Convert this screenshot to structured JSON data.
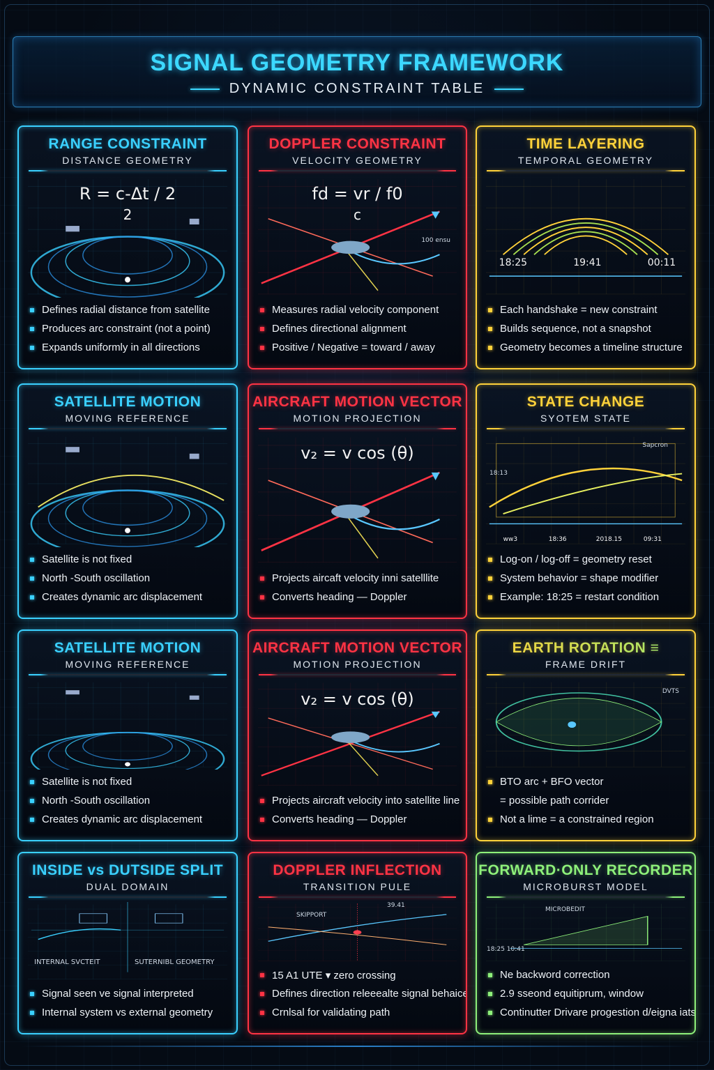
{
  "header": {
    "title": "SIGNAL GEOMETRY FRAMEWORK",
    "subtitle": "DYNAMIC CONSTRAINT TABLE"
  },
  "colors": {
    "blue": "#3ad0ff",
    "red": "#ff3344",
    "yellow": "#ffd23a",
    "green": "#8ef07a"
  },
  "cards": [
    {
      "title": "RANGE CONSTRAINT",
      "subtitle": "DISTANCE GEOMETRY",
      "color": "#3ad0ff",
      "icon": "orbit-arc-icon",
      "formula": "R = c-Δt / 2",
      "formula_denominator": "2",
      "bullets": [
        "Defines radial distance from satellite",
        "Produces arc constraint (not a point)",
        "Expands uniformly in all directions"
      ]
    },
    {
      "title": "DOPPLER CONSTRAINT",
      "subtitle": "VELOCITY GEOMETRY",
      "color": "#ff3344",
      "icon": "aircraft-vector-icon",
      "formula": "fd = vr / f0",
      "formula_denominator": "c",
      "labels": [
        "100 ensu"
      ],
      "bullets": [
        "Measures radial velocity component",
        "Defines directional alignment",
        "Positive / Negative = toward / away"
      ]
    },
    {
      "title": "TIME LAYERING",
      "subtitle": "TEMPORAL GEOMETRY",
      "color": "#ffd23a",
      "icon": "timeline-arcs-icon",
      "times": [
        "18:25",
        "19:41",
        "00:11"
      ],
      "bullets": [
        "Each handshake = new constraint",
        "Builds sequence, not a snapshot",
        "Geometry becomes a timeline structure"
      ]
    },
    {
      "title": "SATELLITE MOTION",
      "subtitle": "MOVING REFERENCE",
      "color": "#3ad0ff",
      "icon": "satellite-orbit-icon",
      "bullets": [
        "Satellite is not fixed",
        "North -South oscillation",
        "Creates dynamic arc displacement"
      ]
    },
    {
      "title": "AIRCRAFT MOTION VECTOR",
      "subtitle": "MOTION PROJECTION",
      "color": "#ff3344",
      "icon": "aircraft-vector-icon",
      "formula": "v₂ = v cos (θ)",
      "bullets": [
        "Projects aircaft velocity inni satelllite",
        "Converts heading — Doppler"
      ]
    },
    {
      "title": "STATE CHANGE",
      "subtitle": "SYOTEM STATE",
      "color": "#ffd23a",
      "icon": "state-arc-icon",
      "labels": [
        "Sарcron",
        "18:13"
      ],
      "times": [
        "ww3",
        "18:36",
        "2018.15",
        "09:31"
      ],
      "bullets": [
        "Log-on / log-off = geometry reset",
        "System behavior = shape modifier",
        "Example: 18:25 = restart condition"
      ]
    },
    {
      "title": "SATELLITE MOTION",
      "subtitle": "MOVING REFERENCE",
      "color": "#3ad0ff",
      "icon": "earth-satellite-icon",
      "bullets": [
        "Satellite is not fixed",
        "North -South oscillation",
        "Creates dynamic arc displacement"
      ]
    },
    {
      "title": "AIRCRAFT MOTION VECTOR",
      "subtitle": "MOTION PROJECTION",
      "color": "#ff3344",
      "icon": "aircraft-vector-icon",
      "formula": "v₂ = v cos (θ)",
      "bullets": [
        "Projects aircraft velocity into satellite line",
        "Converts heading — Doppler"
      ]
    },
    {
      "title": "EARTH ROTATION ≡",
      "subtitle": "FRAME DRIFT",
      "color": "#ffd23a",
      "icon": "earth-globe-icon",
      "labels": [
        "DVTS"
      ],
      "bullets": [
        "BTO arc + BFO vector",
        "  = possible path corrider",
        "Not a lime = a constrained region"
      ]
    },
    {
      "title": "INSIDE vs DUTSIDE SPLIT",
      "subtitle": "DUAL DOMAIN",
      "color": "#3ad0ff",
      "icon": "split-satellite-icon",
      "labels": [
        "INTERNAL SVCTEIT",
        "SUTERNIBL GEOMETRY"
      ],
      "bullets": [
        "Signal seen ve signal interpreted",
        "Internal system vs external geometry"
      ]
    },
    {
      "title": "DOPPLER INFLECTION",
      "subtitle": "TRANSITION PULE",
      "color": "#ff3344",
      "icon": "inflection-crossing-icon",
      "labels": [
        "SKIPPORT",
        "39.41"
      ],
      "bullets": [
        "15 A1 UTE ▾ zero crossing",
        "Defines direction releeealte signal behaices",
        "Crnlsal for validating path"
      ]
    },
    {
      "title": "FORWARD·ONLY RECORDER",
      "subtitle": "MICROBURST MODEL",
      "color": "#8ef07a",
      "icon": "microburst-ramp-icon",
      "labels": [
        "MICROBEDIT",
        "18:25  10:41"
      ],
      "bullets": [
        "Ne backword correction",
        "2.9 sseond equitiprum, window",
        "Continutter Drivare progestion d/eigna iatse"
      ]
    }
  ]
}
